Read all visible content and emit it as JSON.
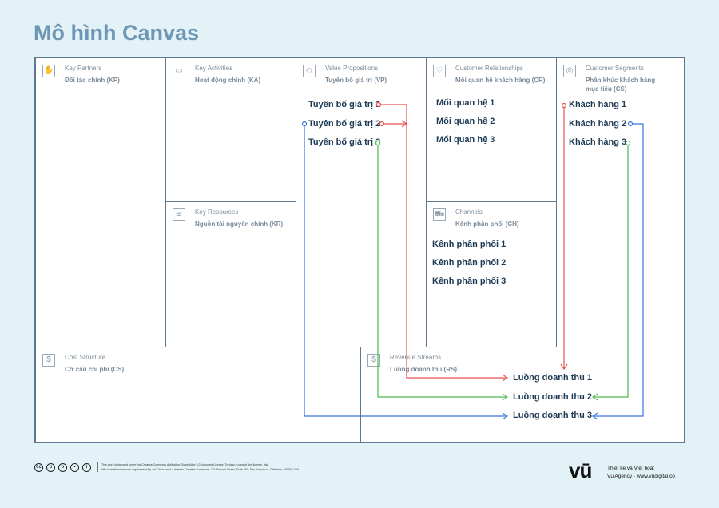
{
  "title": "Mô hình Canvas",
  "blocks": {
    "kp": {
      "en": "Key Partners",
      "vi": "Đối tác chính (KP)",
      "icon": "handshake-icon"
    },
    "ka": {
      "en": "Key Activities",
      "vi": "Hoạt động chính (KA)",
      "icon": "briefcase-icon"
    },
    "vp": {
      "en": "Value Propositions",
      "vi": "Tuyên bố giá trị (VP)",
      "icon": "diamond-icon",
      "items": [
        "Tuyên bố giá trị 1",
        "Tuyên bố giá trị 2",
        "Tuyên bố giá trị 3"
      ]
    },
    "cr": {
      "en": "Customer Relationships",
      "vi": "Mối quan hệ khách hàng  (CR)",
      "icon": "heart-icon",
      "items": [
        "Mối quan hệ 1",
        "Mối quan hệ 2",
        "Mối quan hệ 3"
      ]
    },
    "cs": {
      "en": "Customer Segments",
      "vi": "Phân khúc khách hàng mục tiêu (CS)",
      "icon": "target-icon",
      "items": [
        "Khách hàng 1",
        "Khách hàng 2",
        "Khách hàng 3"
      ]
    },
    "kr": {
      "en": "Key Resources",
      "vi": "Nguồn tài nguyên chính (KR)",
      "icon": "layers-icon"
    },
    "ch": {
      "en": "Channels",
      "vi": "Kênh phân phối (CH)",
      "icon": "truck-icon",
      "items": [
        "Kênh phân phối 1",
        "Kênh phân phối 2",
        "Kênh phân phối 3"
      ]
    },
    "cost": {
      "en": "Cost Structure",
      "vi": "Cơ cấu chi phí (CS)",
      "icon": "cost-icon"
    },
    "rev": {
      "en": "Revenue Streams",
      "vi": "Luồng doanh thu (RS)",
      "icon": "dollar-icon",
      "items": [
        "Luồng doanh thu 1",
        "Luồng doanh thu 2",
        "Luồng doanh thu 3"
      ]
    }
  },
  "colors": {
    "red": "#e8524f",
    "green": "#4cb84f",
    "blue": "#3b73e0"
  },
  "footer": {
    "license": "This work is licensed under the Creative Commons Attribution-Share Alike 3.0 Unported License. To view a copy of this license, visit http://creativecommons.org/licenses/by-sa/3.0/ or send a letter to Creative Commons, 171 Second Street, Suite 300, San Francisco, California, 94105, USA.",
    "logo": "vū",
    "credit1": "Thiết kế và Việt hoá:",
    "credit2": "Vũ Agency - www.vudigital.co"
  }
}
